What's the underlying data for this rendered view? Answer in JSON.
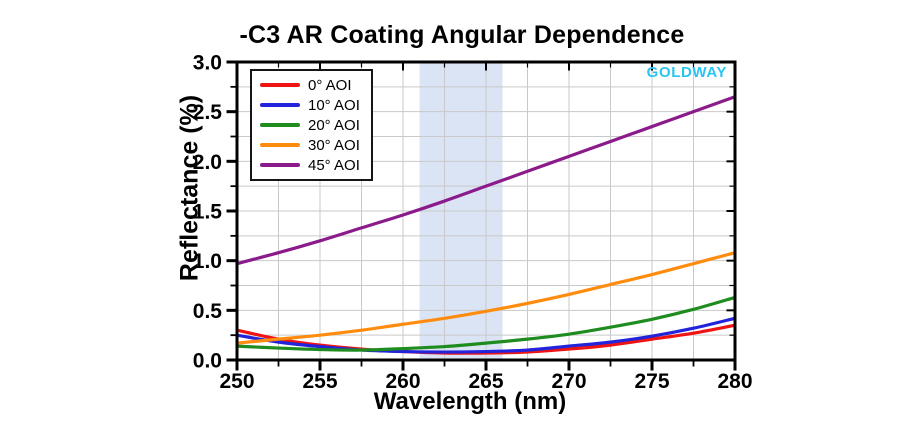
{
  "chart_data": {
    "type": "line",
    "title": "-C3 AR Coating Angular Dependence",
    "xlabel": "Wavelength (nm)",
    "ylabel": "Reflectance (%)",
    "watermark": "GOLDWAY",
    "watermark_color": "#29c5f2",
    "xlim": [
      250,
      280
    ],
    "ylim": [
      0.0,
      3.0
    ],
    "x_tick_labels": [
      "250",
      "255",
      "260",
      "265",
      "270",
      "275",
      "280"
    ],
    "y_tick_labels": [
      "0.0",
      "0.5",
      "1.0",
      "1.5",
      "2.0",
      "2.5",
      "3.0"
    ],
    "x_major_step": 5,
    "x_minor_step": 2.5,
    "y_major_step": 0.5,
    "y_minor_step": 0.25,
    "grid": true,
    "grid_color": "#c9c9c9",
    "axis_color": "#000000",
    "highlight_band_x": [
      261,
      266
    ],
    "highlight_band_color": "#dbe4f4",
    "legend_position": "top-left",
    "x": [
      250,
      252.5,
      255,
      257.5,
      260,
      262.5,
      265,
      267.5,
      270,
      272.5,
      275,
      277.5,
      280
    ],
    "series": [
      {
        "name": "0° AOI",
        "color": "#ee1414",
        "values": [
          0.3,
          0.21,
          0.15,
          0.11,
          0.085,
          0.07,
          0.07,
          0.08,
          0.11,
          0.15,
          0.21,
          0.27,
          0.35
        ]
      },
      {
        "name": "10° AOI",
        "color": "#2323dc",
        "values": [
          0.25,
          0.18,
          0.135,
          0.1,
          0.085,
          0.08,
          0.085,
          0.1,
          0.14,
          0.18,
          0.24,
          0.32,
          0.42
        ]
      },
      {
        "name": "20° AOI",
        "color": "#1f8c1f",
        "values": [
          0.14,
          0.12,
          0.105,
          0.1,
          0.115,
          0.135,
          0.17,
          0.21,
          0.26,
          0.33,
          0.41,
          0.51,
          0.63
        ]
      },
      {
        "name": "30° AOI",
        "color": "#ff8c0f",
        "values": [
          0.17,
          0.21,
          0.25,
          0.3,
          0.36,
          0.42,
          0.49,
          0.57,
          0.66,
          0.76,
          0.86,
          0.97,
          1.08
        ]
      },
      {
        "name": "45° AOI",
        "color": "#8b1a8b",
        "values": [
          0.97,
          1.08,
          1.2,
          1.33,
          1.46,
          1.6,
          1.75,
          1.9,
          2.05,
          2.2,
          2.35,
          2.5,
          2.65
        ]
      }
    ]
  }
}
